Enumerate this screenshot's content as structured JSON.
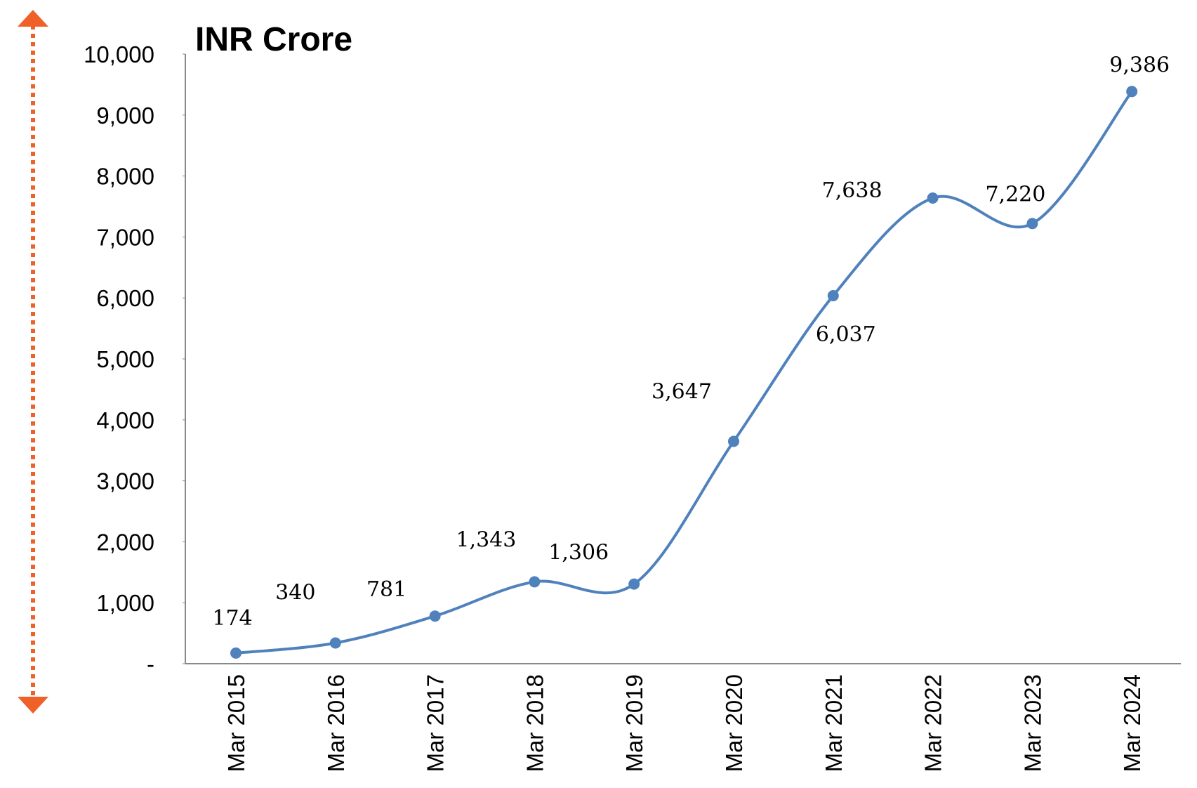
{
  "chart_data": {
    "type": "line",
    "title": "INR Crore",
    "categories": [
      "Mar 2015",
      "Mar 2016",
      "Mar 2017",
      "Mar 2018",
      "Mar 2019",
      "Mar 2020",
      "Mar 2021",
      "Mar 2022",
      "Mar 2023",
      "Mar 2024"
    ],
    "values": [
      174,
      340,
      781,
      1343,
      1306,
      3647,
      6037,
      7638,
      7220,
      9386
    ],
    "value_labels": [
      "174",
      "340",
      "781",
      "1,343",
      "1,306",
      "3,647",
      "6,037",
      "7,638",
      "7,220",
      "9,386"
    ],
    "color": "#4f81bd",
    "ylim": [
      0,
      10000
    ],
    "yticks": [
      {
        "value": 0,
        "label": "-"
      },
      {
        "value": 1000,
        "label": "1,000"
      },
      {
        "value": 2000,
        "label": "2,000"
      },
      {
        "value": 3000,
        "label": "3,000"
      },
      {
        "value": 4000,
        "label": "4,000"
      },
      {
        "value": 5000,
        "label": "5,000"
      },
      {
        "value": 6000,
        "label": "6,000"
      },
      {
        "value": 7000,
        "label": "7,000"
      },
      {
        "value": 8000,
        "label": "8,000"
      },
      {
        "value": 9000,
        "label": "9,000"
      },
      {
        "value": 10000,
        "label": "10,000"
      }
    ],
    "grid": false
  }
}
